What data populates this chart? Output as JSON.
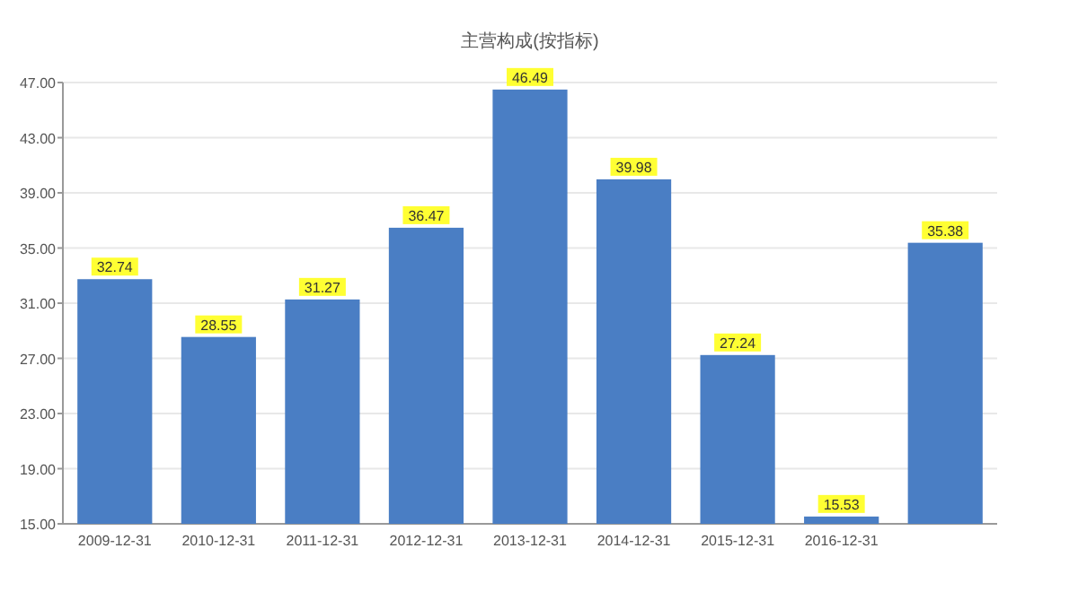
{
  "chart_data": {
    "type": "bar",
    "title": "主营构成(按指标)",
    "categories": [
      "2009-12-31",
      "2010-12-31",
      "2011-12-31",
      "2012-12-31",
      "2013-12-31",
      "2014-12-31",
      "2015-12-31",
      "2016-12-31",
      null
    ],
    "values": [
      32.74,
      28.55,
      31.27,
      36.47,
      46.49,
      39.98,
      27.24,
      15.53,
      35.38
    ],
    "color": "#4a7ec4",
    "ylim": [
      15,
      47
    ],
    "yticks": [
      {
        "value": 15,
        "label": "15.00"
      },
      {
        "value": 19,
        "label": "19.00"
      },
      {
        "value": 23,
        "label": "23.00"
      },
      {
        "value": 27,
        "label": "27.00"
      },
      {
        "value": 31,
        "label": "31.00"
      },
      {
        "value": 35,
        "label": "35.00"
      },
      {
        "value": 39,
        "label": "39.00"
      },
      {
        "value": 43,
        "label": "43.00"
      },
      {
        "value": 47,
        "label": "47.00"
      }
    ],
    "grid": "y",
    "data_labels": true
  }
}
